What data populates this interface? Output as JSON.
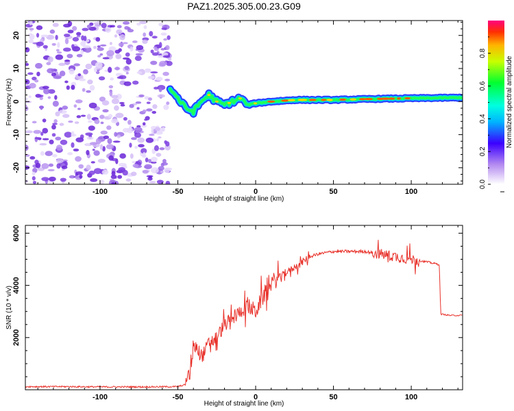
{
  "chart_data": [
    {
      "type": "heatmap",
      "title": "PAZ1.2025.305.00.23.G09",
      "xlabel": "Height of straight line (km)",
      "ylabel": "Frequency (Hz)",
      "xlim": [
        -148,
        133
      ],
      "ylim": [
        -25,
        24.5
      ],
      "xticks": [
        -100,
        -50,
        0,
        50,
        100
      ],
      "yticks": [
        20,
        10,
        0,
        -10,
        -20
      ],
      "colorbar": {
        "label": "Normalized spectral amplitude",
        "range": [
          0,
          1
        ],
        "ticks": [
          0.0,
          0.2,
          0.4,
          0.6,
          0.8
        ]
      },
      "ridge": {
        "description": "frequency of main spectral ridge vs height",
        "x": [
          -55,
          -50,
          -45,
          -40,
          -35,
          -30,
          -25,
          -20,
          -15,
          -10,
          -5,
          0,
          10,
          25,
          50,
          75,
          100,
          133
        ],
        "y": [
          4,
          1,
          -2,
          -3,
          0,
          2,
          0,
          -1,
          0,
          1,
          -1,
          -0.5,
          0,
          0.5,
          0.5,
          0.8,
          1,
          1.2
        ]
      }
    },
    {
      "type": "line",
      "xlabel": "Height of straight line (km)",
      "ylabel": "SNR (10 * v/v)",
      "xlim": [
        -148,
        133
      ],
      "ylim": [
        0,
        6300
      ],
      "xticks": [
        -100,
        -50,
        0,
        50,
        100
      ],
      "yticks": [
        2000,
        4000,
        6000
      ],
      "series": [
        {
          "name": "SNR",
          "color": "#e8312a",
          "x": [
            -148,
            -120,
            -100,
            -70,
            -50,
            -45,
            -42,
            -40,
            -38,
            -36,
            -34,
            -30,
            -25,
            -20,
            -15,
            -10,
            -5,
            0,
            5,
            10,
            15,
            20,
            25,
            30,
            35,
            40,
            50,
            60,
            70,
            80,
            90,
            100,
            110,
            118,
            119,
            125,
            133
          ],
          "y": [
            120,
            120,
            110,
            110,
            120,
            200,
            700,
            1500,
            1700,
            1400,
            1300,
            1800,
            2000,
            2500,
            2700,
            3000,
            3200,
            3000,
            3600,
            4100,
            4300,
            4500,
            4700,
            4900,
            5100,
            5200,
            5300,
            5300,
            5300,
            5200,
            5100,
            5000,
            4900,
            4800,
            2900,
            2850,
            2850
          ]
        }
      ]
    }
  ]
}
